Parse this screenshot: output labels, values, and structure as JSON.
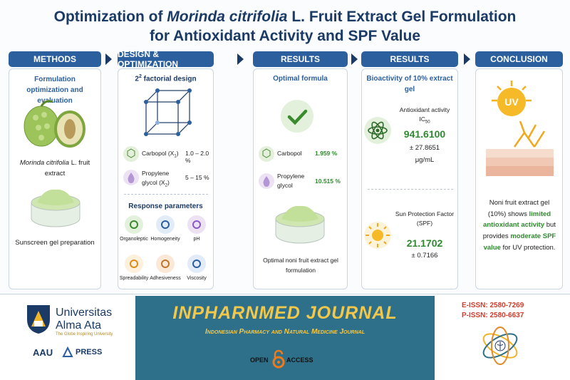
{
  "header": {
    "title_prefix": "Optimization of ",
    "title_italic": "Morinda citrifolia",
    "title_suffix": " L. Fruit Extract Gel Formulation",
    "title_line2": "for Antioxidant Activity and SPF Value"
  },
  "methods": {
    "heading": "METHODS",
    "subtitle": "Formulation optimization and evaluation",
    "fruit_italic": "Morinda citrifolia",
    "fruit_rest": " L. fruit extract",
    "gel_caption": "Sunscreen gel preparation"
  },
  "design": {
    "heading": "DESIGN & OPTIMIZATION",
    "design_base": "2",
    "design_exp": "2",
    "design_text": " factorial design",
    "factors": [
      {
        "name": "Carbopol (X",
        "sub": "1",
        "close": ")",
        "range": "1.0 – 2.0 %"
      },
      {
        "name": "Propylene glycol (X",
        "sub": "2",
        "close": ")",
        "range": "5 – 15 %"
      }
    ],
    "response_title": "Response parameters",
    "responses": [
      "Organoleptic",
      "Homogeneity",
      "pH",
      "Spreadability",
      "Adhesiveness",
      "Viscosity"
    ]
  },
  "results_formula": {
    "heading": "RESULTS",
    "subtitle": "Optimal formula",
    "rows": [
      {
        "name": "Carbopol",
        "value": "1.959 %"
      },
      {
        "name": "Propylene glycol",
        "value": "10.515 %"
      }
    ],
    "caption": "Optimal noni fruit extract gel formulation"
  },
  "results_bio": {
    "heading": "RESULTS",
    "subtitle": "Bioactivity of 10% extract gel",
    "antioxidant_label": "Antioxidant activity",
    "ic_base": "IC",
    "ic_sub": "50",
    "ic50_value": "941.6100",
    "ic50_sd": "± 27.8651",
    "ic50_unit": "μg/mL",
    "spf_label": "Sun Protection Factor (SPF)",
    "spf_value": "21.1702",
    "spf_sd": "± 0.7166"
  },
  "conclusion": {
    "heading": "CONCLUSION",
    "icon_text": "UV",
    "text_1": "Noni fruit extract gel (10%) shows ",
    "highlight_1": "limited antioxidant activity",
    "text_2": " but provides ",
    "highlight_2": "moderate SPF value",
    "text_3": " for UV protection."
  },
  "footer": {
    "university_line1": "Universitas",
    "university_line2": "Alma Ata",
    "tagline": "The Globe Inspiring University",
    "press_left": "AAU",
    "press_right": "PRESS",
    "journal_title": "INPHARNMED JOURNAL",
    "journal_subtitle": "Indonesian Pharmacy and Natural Medicine Journal",
    "open": "OPEN",
    "access": "ACCESS",
    "eissn": "E-ISSN: 2580-7269",
    "pissn": "P-ISSN: 2580-6637"
  }
}
